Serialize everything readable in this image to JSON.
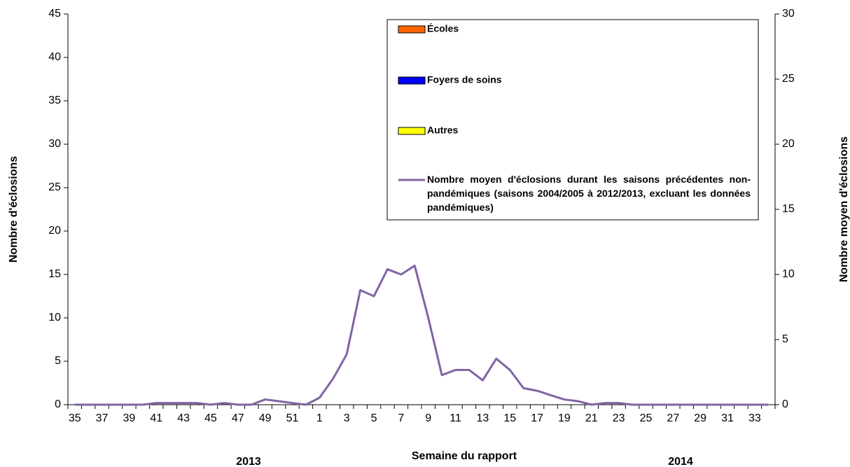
{
  "chart_data": {
    "type": "bar_line",
    "xlabel": "Semaine du rapport",
    "ylabel": "Nombre d'éclosions",
    "y2label": "Nombre moyen d'éclosions",
    "annotations": [
      "2013",
      "2014"
    ],
    "categories": [
      "35",
      null,
      "37",
      null,
      "39",
      null,
      "41",
      null,
      "43",
      null,
      "45",
      null,
      "47",
      null,
      "49",
      null,
      "51",
      null,
      "1",
      null,
      "3",
      null,
      "5",
      null,
      "7",
      null,
      "9",
      null,
      "11",
      null,
      "13",
      null,
      "15",
      null,
      "17",
      null,
      "19",
      null,
      "21",
      null,
      "23",
      null,
      "25",
      null,
      "27",
      null,
      "29",
      null,
      "31",
      null,
      "33",
      null
    ],
    "series": [
      {
        "name": "Écoles",
        "type": "bar",
        "color": "#ff6600",
        "values": [
          0,
          0,
          0,
          0,
          0,
          0,
          0,
          0,
          0,
          0,
          0,
          0,
          0,
          0,
          0,
          0,
          0,
          0,
          0,
          0,
          0,
          0,
          0,
          0,
          0,
          0,
          0,
          0,
          0,
          0,
          0,
          0,
          0,
          0,
          0,
          0,
          0,
          0,
          0,
          0,
          0,
          0,
          0,
          0,
          0,
          0,
          0,
          0,
          0,
          0,
          0,
          0
        ]
      },
      {
        "name": "Foyers de soins",
        "type": "bar",
        "color": "#0000ff",
        "values": [
          0,
          0,
          0,
          0,
          0,
          0,
          0,
          0,
          0,
          0,
          0,
          0,
          0,
          0,
          0,
          0,
          0,
          0,
          0,
          0,
          0,
          0,
          0,
          0,
          0,
          0,
          0,
          0,
          0,
          0,
          0,
          0,
          0,
          0,
          0,
          0,
          0,
          0,
          0,
          0,
          0,
          0,
          0,
          0,
          0,
          0,
          0,
          0,
          0,
          0,
          0,
          0
        ]
      },
      {
        "name": "Autres",
        "type": "bar",
        "color": "#ffff00",
        "values": [
          0,
          0,
          0,
          0,
          0,
          0,
          0,
          0,
          0,
          0,
          0,
          0,
          0,
          0,
          0,
          0,
          0,
          0,
          0,
          0,
          0,
          0,
          0,
          0,
          0,
          0,
          0,
          0,
          0,
          0,
          0,
          0,
          0,
          0,
          0,
          0,
          0,
          0,
          0,
          0,
          0,
          0,
          0,
          0,
          0,
          0,
          0,
          0,
          0,
          0,
          0,
          0
        ]
      },
      {
        "name": "Nombre moyen d'éclosions durant les saisons précédentes non-pandémiques (saisons 2004/2005 à 2012/2013, excluant les données pandémiques)",
        "type": "line",
        "axis": "y2",
        "color": "#8064a2",
        "values": [
          0,
          0,
          0,
          0,
          0,
          0,
          0.13,
          0.13,
          0.13,
          0.13,
          0,
          0.13,
          0,
          0,
          0.4,
          0.27,
          0.13,
          0,
          0.53,
          2,
          3.87,
          8.8,
          8.33,
          10.4,
          10,
          10.67,
          6.67,
          2.27,
          2.67,
          2.67,
          1.87,
          3.53,
          2.67,
          1.27,
          1.07,
          0.73,
          0.4,
          0.27,
          0,
          0.13,
          0.13,
          0,
          0,
          0,
          0,
          0,
          0,
          0,
          0,
          0,
          0,
          0
        ]
      }
    ],
    "ylim": [
      0,
      45
    ],
    "yticks": [
      0,
      5,
      10,
      15,
      20,
      25,
      30,
      35,
      40,
      45
    ],
    "y2lim": [
      0,
      30
    ],
    "y2ticks": [
      0,
      5,
      10,
      15,
      20,
      25,
      30
    ],
    "grid": false,
    "legend": "upper right"
  }
}
